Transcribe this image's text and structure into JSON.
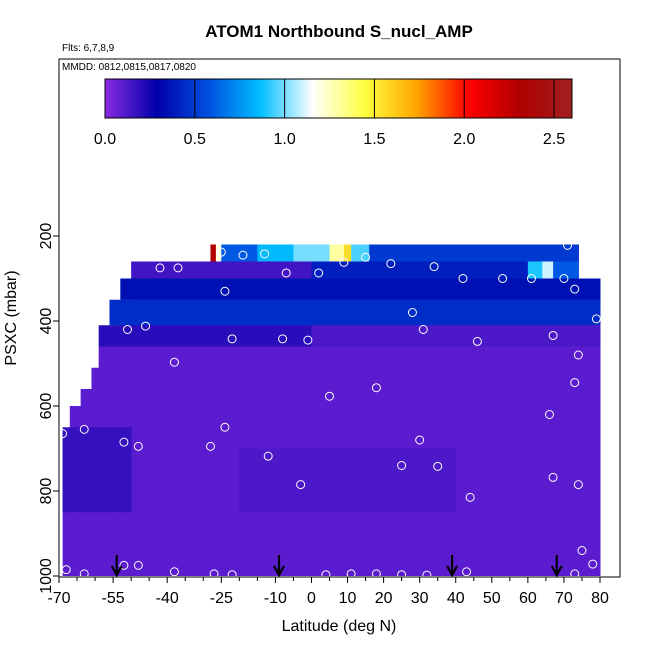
{
  "chart_data": {
    "type": "heatmap",
    "title": "ATOM1 Northbound S_nucl_AMP",
    "subtitle": "Flts: 6,7,8,9",
    "note": "MMDD: 0812,0815,0817,0820",
    "xlabel": "Latitude (deg N)",
    "ylabel": "PSXC (mbar)",
    "xlim": [
      -70,
      80
    ],
    "ylim": [
      1000,
      0
    ],
    "x_ticks": [
      -70,
      -55,
      -40,
      -25,
      -10,
      0,
      10,
      20,
      30,
      40,
      50,
      60,
      70,
      80
    ],
    "x_tick_labels": [
      "-70",
      "-55",
      "-40",
      "-25",
      "-10",
      "0",
      "10",
      "20",
      "30",
      "40",
      "50",
      "60",
      "70",
      "80"
    ],
    "x_minor_ticks": [
      -65,
      -60,
      -50,
      -45,
      -35,
      -30,
      -20,
      -15,
      -5,
      5,
      15,
      25,
      35,
      45,
      55,
      65,
      75
    ],
    "y_ticks": [
      200,
      400,
      600,
      800,
      1000
    ],
    "y_tick_labels": [
      "200",
      "400",
      "600",
      "800",
      "1000"
    ],
    "colorbar": {
      "min": 0,
      "max": 2.6,
      "ticks": [
        0.0,
        0.5,
        1.0,
        1.5,
        2.0,
        2.5
      ],
      "tick_labels": [
        "0.0",
        "0.5",
        "1.0",
        "1.5",
        "2.0",
        "2.5"
      ],
      "colors": [
        "#8a2be2",
        "#0000a8",
        "#0050e0",
        "#00bfff",
        "#ffffff",
        "#ffff40",
        "#ffa500",
        "#ff0000",
        "#b00000",
        "#a02020"
      ]
    },
    "background_value": 0.1,
    "columns": [
      {
        "x0": -69,
        "x1": -67,
        "ytop": 660
      },
      {
        "x0": -67,
        "x1": -64,
        "ytop": 600
      },
      {
        "x0": -64,
        "x1": -61,
        "ytop": 560
      },
      {
        "x0": -61,
        "x1": -59,
        "ytop": 510
      },
      {
        "x0": -59,
        "x1": -56,
        "ytop": 460
      },
      {
        "x0": -56,
        "x1": -53,
        "ytop": 410
      },
      {
        "x0": -53,
        "x1": -50,
        "ytop": 350
      },
      {
        "x0": -50,
        "x1": -28,
        "ytop": 300
      },
      {
        "x0": -28,
        "x1": 74,
        "ytop": 220
      },
      {
        "x0": 74,
        "x1": 80,
        "ytop": 310
      }
    ],
    "bands": [
      {
        "x0": -28,
        "x1": -26.5,
        "y0": 220,
        "y1": 260,
        "value": 2.3
      },
      {
        "x0": -26.5,
        "x1": -25,
        "y0": 220,
        "y1": 260,
        "value": 1.2
      },
      {
        "x0": -25,
        "x1": -15,
        "y0": 220,
        "y1": 260,
        "value": 0.6
      },
      {
        "x0": -15,
        "x1": -5,
        "y0": 220,
        "y1": 260,
        "value": 0.85
      },
      {
        "x0": -5,
        "x1": 5,
        "y0": 220,
        "y1": 260,
        "value": 1.0
      },
      {
        "x0": 5,
        "x1": 9,
        "y0": 220,
        "y1": 260,
        "value": 1.3
      },
      {
        "x0": 9,
        "x1": 11,
        "y0": 220,
        "y1": 260,
        "value": 1.55
      },
      {
        "x0": 11,
        "x1": 16,
        "y0": 220,
        "y1": 260,
        "value": 0.95
      },
      {
        "x0": 16,
        "x1": 74,
        "y0": 220,
        "y1": 260,
        "value": 0.5
      },
      {
        "x0": -50,
        "x1": 0,
        "y0": 260,
        "y1": 300,
        "value": 0.15
      },
      {
        "x0": 0,
        "x1": 60,
        "y0": 260,
        "y1": 300,
        "value": 0.4
      },
      {
        "x0": 60,
        "x1": 64,
        "y0": 260,
        "y1": 300,
        "value": 0.9
      },
      {
        "x0": 64,
        "x1": 67,
        "y0": 260,
        "y1": 300,
        "value": 1.1
      },
      {
        "x0": 67,
        "x1": 74,
        "y0": 260,
        "y1": 300,
        "value": 0.6
      },
      {
        "x0": -53,
        "x1": 80,
        "y0": 300,
        "y1": 350,
        "value": 0.35
      },
      {
        "x0": -56,
        "x1": 80,
        "y0": 350,
        "y1": 410,
        "value": 0.45
      },
      {
        "x0": -59,
        "x1": 0,
        "y0": 410,
        "y1": 460,
        "value": 0.2
      },
      {
        "x0": 0,
        "x1": 80,
        "y0": 410,
        "y1": 460,
        "value": 0.13
      },
      {
        "x0": -69,
        "x1": -50,
        "y0": 650,
        "y1": 850,
        "value": 0.18
      },
      {
        "x0": -20,
        "x1": 40,
        "y0": 700,
        "y1": 850,
        "value": 0.13
      }
    ],
    "sample_points": [
      {
        "x": -68,
        "y": 985
      },
      {
        "x": -63,
        "y": 995
      },
      {
        "x": -52,
        "y": 975
      },
      {
        "x": -48,
        "y": 975
      },
      {
        "x": -38,
        "y": 990
      },
      {
        "x": -27,
        "y": 995
      },
      {
        "x": -22,
        "y": 997
      },
      {
        "x": 4,
        "y": 997
      },
      {
        "x": 11,
        "y": 995
      },
      {
        "x": 18,
        "y": 995
      },
      {
        "x": 25,
        "y": 997
      },
      {
        "x": 32,
        "y": 998
      },
      {
        "x": 43,
        "y": 990
      },
      {
        "x": 73,
        "y": 995
      },
      {
        "x": -69,
        "y": 665
      },
      {
        "x": -63,
        "y": 655
      },
      {
        "x": -52,
        "y": 685
      },
      {
        "x": -48,
        "y": 695
      },
      {
        "x": -24,
        "y": 650
      },
      {
        "x": -28,
        "y": 695
      },
      {
        "x": -12,
        "y": 718
      },
      {
        "x": -3,
        "y": 785
      },
      {
        "x": 25,
        "y": 740
      },
      {
        "x": 30,
        "y": 680
      },
      {
        "x": 35,
        "y": 742
      },
      {
        "x": 44,
        "y": 815
      },
      {
        "x": 67,
        "y": 768
      },
      {
        "x": 74,
        "y": 785
      },
      {
        "x": 66,
        "y": 620
      },
      {
        "x": 75,
        "y": 940
      },
      {
        "x": 78,
        "y": 972
      },
      {
        "x": -38,
        "y": 497
      },
      {
        "x": -22,
        "y": 442
      },
      {
        "x": -8,
        "y": 442
      },
      {
        "x": -1,
        "y": 445
      },
      {
        "x": 5,
        "y": 577
      },
      {
        "x": 18,
        "y": 557
      },
      {
        "x": 31,
        "y": 420
      },
      {
        "x": 46,
        "y": 448
      },
      {
        "x": 67,
        "y": 434
      },
      {
        "x": 73,
        "y": 545
      },
      {
        "x": 74,
        "y": 480
      },
      {
        "x": 79,
        "y": 395
      },
      {
        "x": -51,
        "y": 420
      },
      {
        "x": -46,
        "y": 412
      },
      {
        "x": -42,
        "y": 275
      },
      {
        "x": -37,
        "y": 275
      },
      {
        "x": -55,
        "y": 300
      },
      {
        "x": -24,
        "y": 330
      },
      {
        "x": -25,
        "y": 238
      },
      {
        "x": -19,
        "y": 245
      },
      {
        "x": -13,
        "y": 242
      },
      {
        "x": -7,
        "y": 287
      },
      {
        "x": 2,
        "y": 287
      },
      {
        "x": 9,
        "y": 262
      },
      {
        "x": 15,
        "y": 250
      },
      {
        "x": 22,
        "y": 265
      },
      {
        "x": 28,
        "y": 380
      },
      {
        "x": 34,
        "y": 272
      },
      {
        "x": 42,
        "y": 300
      },
      {
        "x": 53,
        "y": 300
      },
      {
        "x": 61,
        "y": 300
      },
      {
        "x": 70,
        "y": 300
      },
      {
        "x": 71,
        "y": 222
      },
      {
        "x": 73,
        "y": 325
      }
    ],
    "flight_markers": [
      -54,
      -9,
      39,
      68
    ]
  }
}
